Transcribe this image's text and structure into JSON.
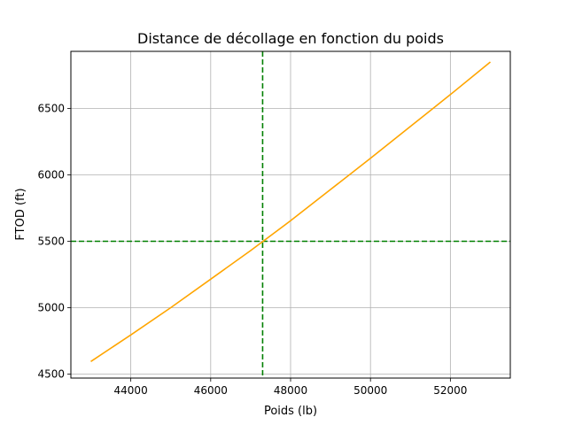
{
  "chart_data": {
    "type": "line",
    "title": "Distance de décollage en fonction du poids",
    "xlabel": "Poids (lb)",
    "ylabel": "FTOD (ft)",
    "xlim": [
      42500,
      53500
    ],
    "ylim": [
      4470,
      6930
    ],
    "x_ticks": [
      44000,
      46000,
      48000,
      50000,
      52000
    ],
    "y_ticks": [
      4500,
      5000,
      5500,
      6000,
      6500
    ],
    "grid": true,
    "series": [
      {
        "color": "#ffa500",
        "x": [
          43000,
          44000,
          45000,
          46000,
          47000,
          48000,
          49000,
          50000,
          51000,
          52000,
          53000
        ],
        "y": [
          4595,
          4795,
          5000,
          5215,
          5430,
          5655,
          5890,
          6125,
          6365,
          6605,
          6850
        ]
      }
    ],
    "reference_lines": [
      {
        "orientation": "vertical",
        "value": 47300,
        "color": "#008000",
        "style": "dashed"
      },
      {
        "orientation": "horizontal",
        "value": 5500,
        "color": "#008000",
        "style": "dashed"
      }
    ]
  }
}
